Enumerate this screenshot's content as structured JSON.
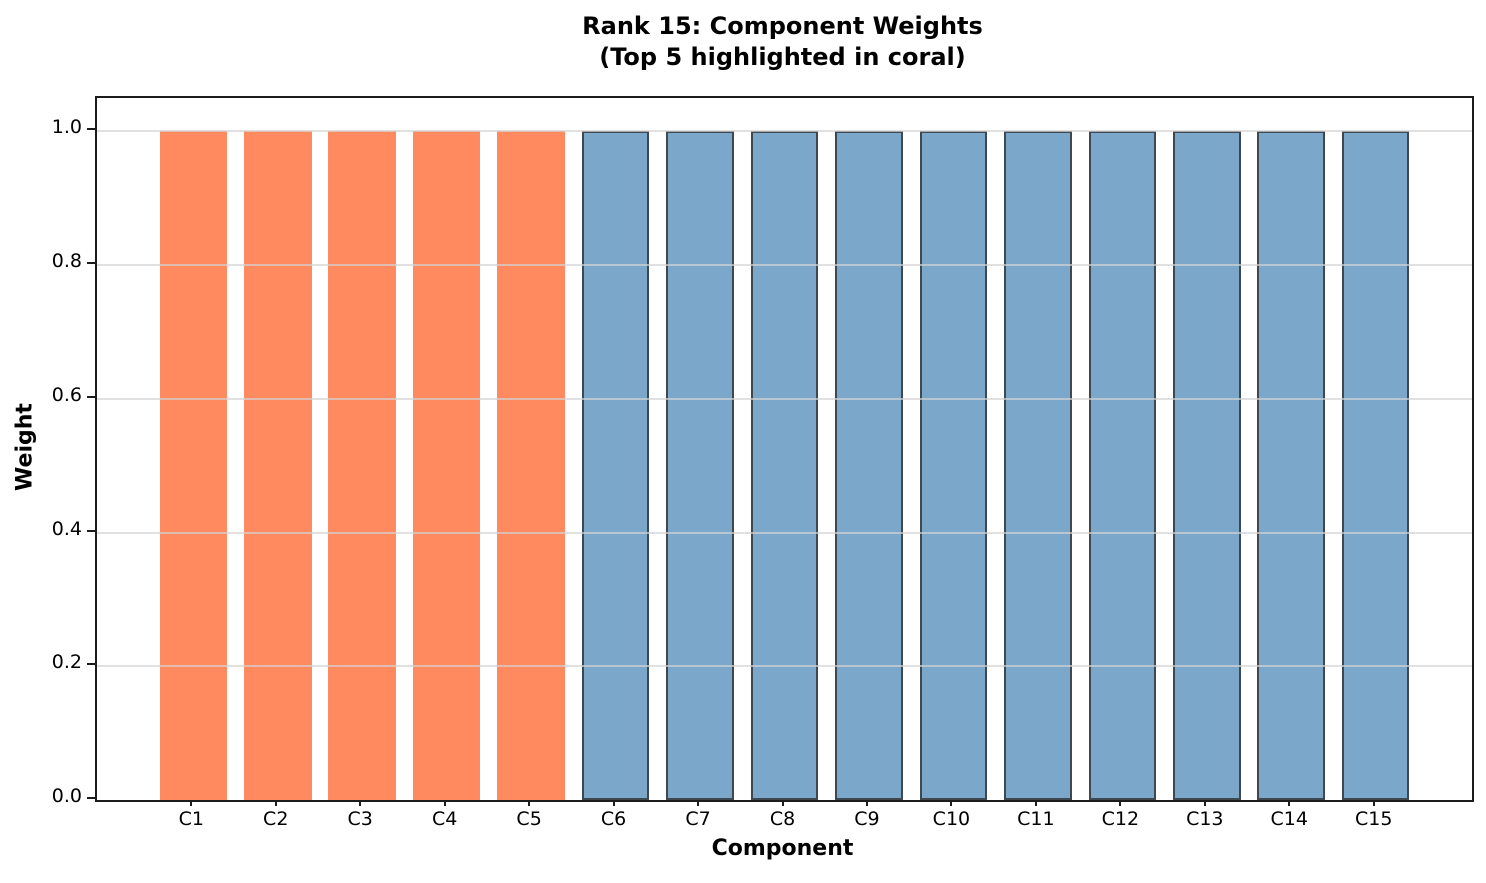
{
  "chart_data": {
    "type": "bar",
    "title": "Rank 15: Component Weights",
    "subtitle": "(Top 5 highlighted in coral)",
    "xlabel": "Component",
    "ylabel": "Weight",
    "categories": [
      "C1",
      "C2",
      "C3",
      "C4",
      "C5",
      "C6",
      "C7",
      "C8",
      "C9",
      "C10",
      "C11",
      "C12",
      "C13",
      "C14",
      "C15"
    ],
    "values": [
      1.0,
      1.0,
      1.0,
      1.0,
      1.0,
      1.0,
      1.0,
      1.0,
      1.0,
      1.0,
      1.0,
      1.0,
      1.0,
      1.0,
      1.0
    ],
    "highlight_count": 5,
    "ytick_labels": [
      "0.0",
      "0.2",
      "0.4",
      "0.6",
      "0.8",
      "1.0"
    ],
    "ytick_values": [
      0.0,
      0.2,
      0.4,
      0.6,
      0.8,
      1.0
    ],
    "ylim": [
      0,
      1.05
    ],
    "xlim": [
      -1.14,
      15.14
    ],
    "bar_width_units": 0.8,
    "grid": "horizontal, light gray, drawn over bars",
    "legend": "none",
    "colors": {
      "highlight_fill": "#FF8A5F",
      "normal_fill": "#7BA7CB",
      "normal_edge": "#40484F",
      "spine": "#1c1c1c",
      "grid": "rgba(211,211,211,0.7)",
      "text": "#000000"
    }
  }
}
